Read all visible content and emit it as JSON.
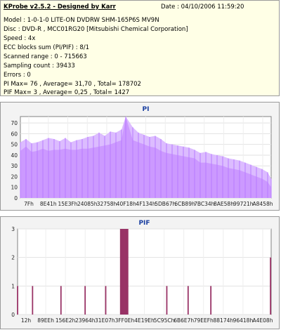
{
  "header": {
    "title": "KProbe v2.5.2 - Designed by Karr",
    "date": "Date : 04/10/2006 11:59:20",
    "lines": [
      "Model : 1-0-1-0 LITE-ON DVDRW SHM-165P6S MV9N",
      "Disc : DVD-R , MCC01RG20 [Mitsubishi Chemical Corporation]",
      "Speed : 4x",
      "ECC blocks sum (PI/PIF) : 8/1",
      "Scanned range : 0 - 715663",
      "Sampling count : 39433",
      "Errors : 0",
      "PI Max= 76 , Average= 31,70 , Total= 178702",
      "PIF Max= 3 , Average= 0,25 , Total= 1427"
    ]
  },
  "chart_data": [
    {
      "type": "area",
      "title": "PI",
      "x_tick_labels": [
        "7Fh",
        "8E41h",
        "15E3Fh",
        "24085h",
        "32758h",
        "40F18h",
        "4F134h",
        "5DB67h",
        "6CB89h",
        "7BC34h",
        "8AE58h",
        "99721h",
        "A8458h"
      ],
      "y_ticks": [
        0,
        10,
        20,
        30,
        40,
        50,
        60,
        70
      ],
      "ylim": [
        0,
        76
      ],
      "grid": true,
      "color": "#cc99ff",
      "x": [
        0,
        8,
        16,
        24,
        32,
        40,
        48,
        56,
        64,
        72,
        80,
        88,
        96,
        104,
        112,
        120,
        128,
        136,
        144,
        150,
        160,
        168,
        176,
        184,
        192,
        200,
        208,
        216,
        224,
        232,
        240,
        248,
        256,
        264,
        272,
        280,
        288,
        296,
        304,
        312,
        320,
        328,
        336,
        344,
        352,
        357
      ],
      "values": [
        44,
        48,
        43,
        44,
        46,
        44,
        45,
        45,
        46,
        45,
        45,
        46,
        46,
        47,
        48,
        49,
        50,
        52,
        54,
        76,
        54,
        52,
        50,
        48,
        47,
        44,
        42,
        41,
        40,
        39,
        38,
        37,
        33,
        33,
        32,
        31,
        30,
        28,
        27,
        26,
        24,
        22,
        20,
        18,
        15,
        10
      ],
      "peak_values": [
        52,
        55,
        51,
        52,
        54,
        56,
        55,
        53,
        56,
        52,
        54,
        55,
        57,
        58,
        61,
        58,
        62,
        61,
        64,
        76,
        66,
        61,
        59,
        57,
        58,
        55,
        51,
        50,
        49,
        48,
        47,
        45,
        42,
        43,
        41,
        40,
        39,
        37,
        36,
        35,
        33,
        31,
        29,
        27,
        24,
        18
      ]
    },
    {
      "type": "bar",
      "title": "PIF",
      "x_tick_labels": [
        "12h",
        "89EEh",
        "156E2h",
        "23964h",
        "31E07h",
        "3FF0Eh",
        "4E19Eh",
        "5C95Ch",
        "6B6E7h",
        "79EEFh",
        "88174h",
        "96418h",
        "A4E08h"
      ],
      "y_ticks": [
        0,
        1,
        2,
        3
      ],
      "ylim": [
        0,
        3
      ],
      "grid": true,
      "color": "#993366",
      "x": [
        0,
        21,
        61,
        95,
        124,
        145,
        146,
        147,
        148,
        149,
        150,
        151,
        152,
        153,
        154,
        155,
        210,
        240,
        272,
        356
      ],
      "values": [
        1,
        1,
        1,
        1,
        1,
        3,
        3,
        3,
        3,
        3,
        3,
        3,
        3,
        3,
        3,
        3,
        1,
        1,
        1,
        2
      ]
    }
  ]
}
